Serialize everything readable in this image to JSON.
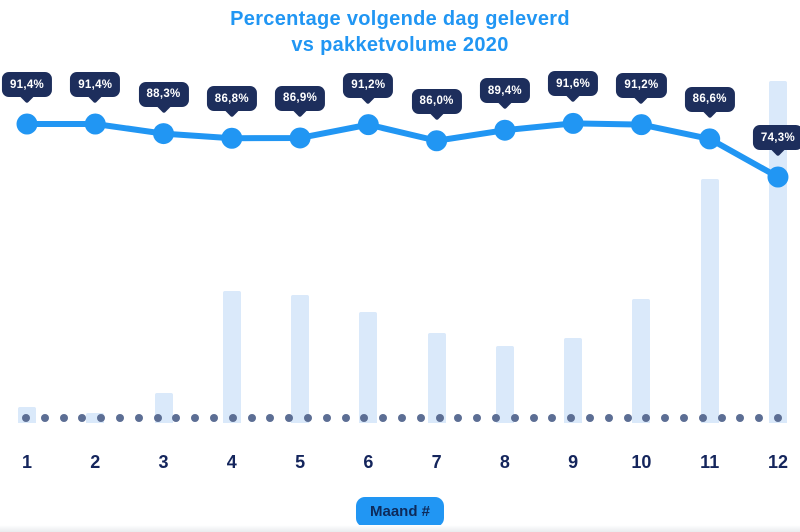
{
  "title": {
    "line1": "Percentage volgende dag geleverd",
    "line2": "vs pakketvolume 2020"
  },
  "x_axis": {
    "labels": [
      "1",
      "2",
      "3",
      "4",
      "5",
      "6",
      "7",
      "8",
      "9",
      "10",
      "11",
      "12"
    ],
    "title_badge": "Maand #"
  },
  "chart_data": {
    "type": "combo",
    "title": "Percentage volgende dag geleverd vs pakketvolume 2020",
    "categories": [
      1,
      2,
      3,
      4,
      5,
      6,
      7,
      8,
      9,
      10,
      11,
      12
    ],
    "xlabel": "Maand #",
    "legend": "none",
    "grid": "none",
    "y_axis_shown": false,
    "baseline_dotted": true,
    "series": [
      {
        "name": "Percentage volgende dag geleverd",
        "type": "line",
        "unit": "%",
        "ylim": [
          70,
          95
        ],
        "values": [
          91.4,
          91.4,
          88.3,
          86.8,
          86.9,
          91.2,
          86.0,
          89.4,
          91.6,
          91.2,
          86.6,
          74.3
        ],
        "point_labels": [
          "91,4%",
          "91,4%",
          "88,3%",
          "86,8%",
          "86,9%",
          "91,2%",
          "86,0%",
          "89,4%",
          "91,6%",
          "91,2%",
          "86,6%",
          "74,3%"
        ]
      },
      {
        "name": "Pakketvolume",
        "type": "bar",
        "unit": "relative index (max month = 100, no axis labeled)",
        "values": [
          4.7,
          2.9,
          8.8,
          38.6,
          37.4,
          32.5,
          26.3,
          22.5,
          24.9,
          36.3,
          71.3,
          100
        ]
      }
    ]
  },
  "colors": {
    "accent_blue": "#2196F3",
    "callout_navy": "#1D2E5C",
    "axis_label_navy": "#14255C",
    "bar_light_blue": "#DAE9FA",
    "baseline_dot": "#5C6E94",
    "background": "#FFFFFF",
    "callout_text": "#FFFFFF",
    "badge_text": "#0E2A5A"
  }
}
